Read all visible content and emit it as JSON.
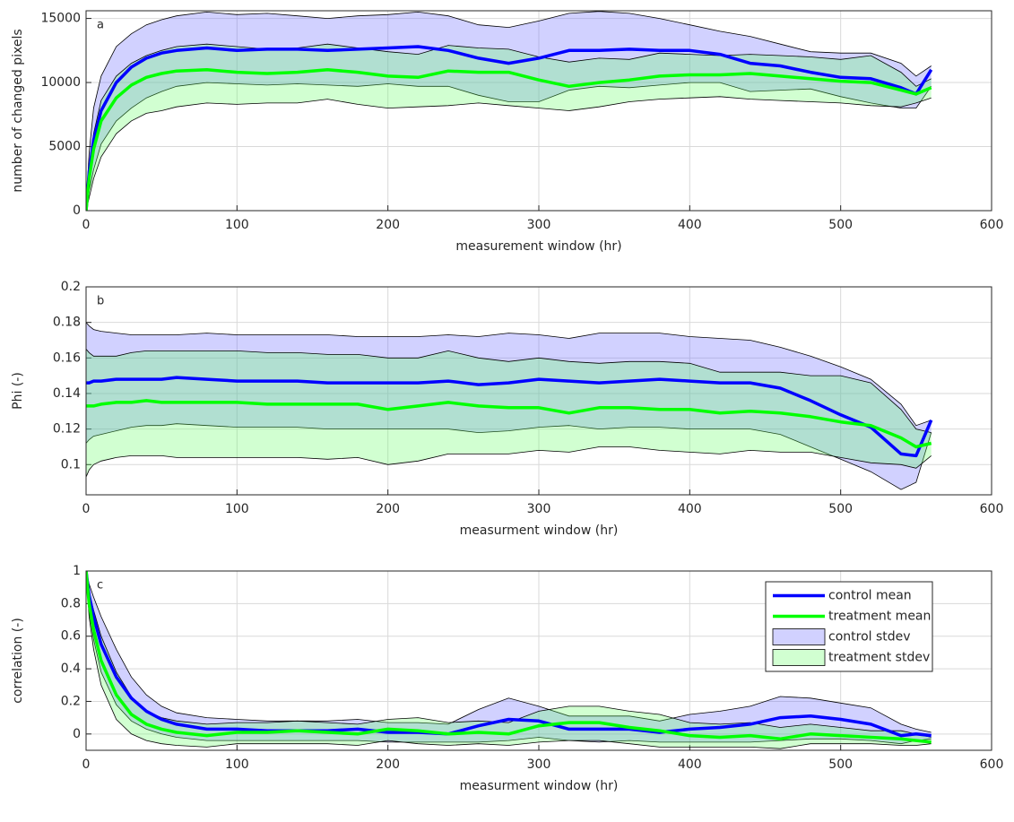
{
  "chart_data": [
    {
      "type": "line",
      "annotation": "a",
      "xlabel": "measurement window (hr)",
      "ylabel": "number of changed pixels",
      "x": [
        0,
        2,
        5,
        10,
        20,
        30,
        40,
        50,
        60,
        80,
        100,
        120,
        140,
        160,
        180,
        200,
        220,
        240,
        260,
        280,
        300,
        320,
        340,
        360,
        380,
        400,
        420,
        440,
        460,
        480,
        500,
        520,
        540,
        550,
        560
      ],
      "xlim": [
        0,
        600
      ],
      "xticks": [
        0,
        100,
        200,
        300,
        400,
        500,
        600
      ],
      "ylim": [
        0,
        15600
      ],
      "yticks": [
        0,
        5000,
        10000,
        15000
      ],
      "grid": true,
      "series": [
        {
          "color": "#0000ff",
          "values": [
            0,
            3000,
            5500,
            7800,
            10000,
            11200,
            11900,
            12300,
            12500,
            12700,
            12500,
            12600,
            12600,
            12500,
            12600,
            12700,
            12800,
            12500,
            11900,
            11500,
            11900,
            12500,
            12500,
            12600,
            12500,
            12500,
            12200,
            11500,
            11300,
            10800,
            10400,
            10300,
            9600,
            9100,
            11000
          ]
        },
        {
          "color": "#00ff00",
          "values": [
            0,
            2500,
            4800,
            7000,
            8800,
            9800,
            10400,
            10700,
            10900,
            11000,
            10800,
            10700,
            10800,
            11000,
            10800,
            10500,
            10400,
            10900,
            10800,
            10800,
            10200,
            9700,
            10000,
            10200,
            10500,
            10600,
            10600,
            10700,
            10500,
            10300,
            10100,
            10000,
            9400,
            9100,
            9600
          ]
        }
      ],
      "bands": [
        {
          "color": "#6666ff",
          "upper": [
            300,
            4500,
            8000,
            10500,
            12800,
            13800,
            14500,
            14900,
            15200,
            15500,
            15300,
            15400,
            15200,
            15000,
            15200,
            15300,
            15500,
            15200,
            14500,
            14300,
            14800,
            15400,
            15550,
            15400,
            15000,
            14500,
            14000,
            13600,
            13000,
            12400,
            12300,
            12300,
            11500,
            10500,
            11300
          ],
          "lower": [
            0,
            1500,
            3200,
            5200,
            7000,
            8000,
            8800,
            9300,
            9700,
            10000,
            9900,
            9800,
            9900,
            9800,
            9700,
            9900,
            9700,
            9700,
            9000,
            8500,
            8500,
            9400,
            9700,
            9600,
            9800,
            10000,
            10000,
            9300,
            9400,
            9500,
            8900,
            8400,
            8000,
            8000,
            9700
          ]
        },
        {
          "color": "#66ff66",
          "upper": [
            200,
            3300,
            6000,
            8600,
            10500,
            11500,
            12100,
            12500,
            12800,
            13000,
            12800,
            12600,
            12700,
            13000,
            12700,
            12400,
            12200,
            12900,
            12700,
            12600,
            12000,
            11600,
            11900,
            11800,
            12300,
            12200,
            12100,
            12200,
            12100,
            12000,
            11800,
            12100,
            10800,
            9700,
            10300
          ],
          "lower": [
            0,
            1000,
            2500,
            4200,
            6000,
            7000,
            7600,
            7800,
            8100,
            8400,
            8300,
            8400,
            8400,
            8700,
            8300,
            8000,
            8100,
            8200,
            8400,
            8200,
            8000,
            7800,
            8100,
            8500,
            8700,
            8800,
            8900,
            8700,
            8600,
            8500,
            8400,
            8200,
            8100,
            8400,
            8800
          ]
        }
      ]
    },
    {
      "type": "line",
      "annotation": "b",
      "xlabel": "measurment window (hr)",
      "ylabel": "Phi (-)",
      "x": [
        0,
        2,
        5,
        10,
        20,
        30,
        40,
        50,
        60,
        80,
        100,
        120,
        140,
        160,
        180,
        200,
        220,
        240,
        260,
        280,
        300,
        320,
        340,
        360,
        380,
        400,
        420,
        440,
        460,
        480,
        500,
        520,
        540,
        550,
        560
      ],
      "xlim": [
        0,
        600
      ],
      "xticks": [
        0,
        100,
        200,
        300,
        400,
        500,
        600
      ],
      "ylim": [
        0.083,
        0.2
      ],
      "yticks": [
        0.1,
        0.12,
        0.14,
        0.16,
        0.18,
        0.2
      ],
      "grid": true,
      "series": [
        {
          "color": "#0000ff",
          "values": [
            0.146,
            0.146,
            0.147,
            0.147,
            0.148,
            0.148,
            0.148,
            0.148,
            0.149,
            0.148,
            0.147,
            0.147,
            0.147,
            0.146,
            0.146,
            0.146,
            0.146,
            0.147,
            0.145,
            0.146,
            0.148,
            0.147,
            0.146,
            0.147,
            0.148,
            0.147,
            0.146,
            0.146,
            0.143,
            0.136,
            0.128,
            0.121,
            0.106,
            0.105,
            0.125
          ]
        },
        {
          "color": "#00ff00",
          "values": [
            0.133,
            0.133,
            0.133,
            0.134,
            0.135,
            0.135,
            0.136,
            0.135,
            0.135,
            0.135,
            0.135,
            0.134,
            0.134,
            0.134,
            0.134,
            0.131,
            0.133,
            0.135,
            0.133,
            0.132,
            0.132,
            0.129,
            0.132,
            0.132,
            0.131,
            0.131,
            0.129,
            0.13,
            0.129,
            0.127,
            0.124,
            0.122,
            0.115,
            0.11,
            0.112
          ]
        }
      ],
      "bands": [
        {
          "color": "#6666ff",
          "upper": [
            0.18,
            0.178,
            0.176,
            0.175,
            0.174,
            0.173,
            0.173,
            0.173,
            0.173,
            0.174,
            0.173,
            0.173,
            0.173,
            0.173,
            0.172,
            0.172,
            0.172,
            0.173,
            0.172,
            0.174,
            0.173,
            0.171,
            0.174,
            0.174,
            0.174,
            0.172,
            0.171,
            0.17,
            0.166,
            0.161,
            0.155,
            0.148,
            0.134,
            0.122,
            0.125
          ],
          "lower": [
            0.112,
            0.114,
            0.116,
            0.117,
            0.119,
            0.121,
            0.122,
            0.122,
            0.123,
            0.122,
            0.121,
            0.121,
            0.121,
            0.12,
            0.12,
            0.12,
            0.12,
            0.12,
            0.118,
            0.119,
            0.121,
            0.122,
            0.12,
            0.121,
            0.121,
            0.12,
            0.12,
            0.12,
            0.117,
            0.11,
            0.103,
            0.096,
            0.086,
            0.09,
            0.118
          ]
        },
        {
          "color": "#66ff66",
          "upper": [
            0.165,
            0.163,
            0.161,
            0.161,
            0.161,
            0.163,
            0.164,
            0.164,
            0.164,
            0.164,
            0.164,
            0.163,
            0.163,
            0.162,
            0.162,
            0.16,
            0.16,
            0.164,
            0.16,
            0.158,
            0.16,
            0.158,
            0.157,
            0.158,
            0.158,
            0.157,
            0.152,
            0.152,
            0.152,
            0.15,
            0.15,
            0.146,
            0.131,
            0.12,
            0.118
          ],
          "lower": [
            0.093,
            0.097,
            0.1,
            0.102,
            0.104,
            0.105,
            0.105,
            0.105,
            0.104,
            0.104,
            0.104,
            0.104,
            0.104,
            0.103,
            0.104,
            0.1,
            0.102,
            0.106,
            0.106,
            0.106,
            0.108,
            0.107,
            0.11,
            0.11,
            0.108,
            0.107,
            0.106,
            0.108,
            0.107,
            0.107,
            0.104,
            0.101,
            0.1,
            0.098,
            0.105
          ]
        }
      ]
    },
    {
      "type": "line",
      "annotation": "c",
      "xlabel": "measurment window (hr)",
      "ylabel": "correlation (-)",
      "x": [
        0,
        2,
        5,
        10,
        20,
        30,
        40,
        50,
        60,
        80,
        100,
        120,
        140,
        160,
        180,
        200,
        220,
        240,
        260,
        280,
        300,
        320,
        340,
        360,
        380,
        400,
        420,
        440,
        460,
        480,
        500,
        520,
        540,
        550,
        560
      ],
      "xlim": [
        0,
        600
      ],
      "xticks": [
        0,
        100,
        200,
        300,
        400,
        500,
        600
      ],
      "ylim": [
        -0.1,
        1
      ],
      "yticks": [
        0,
        0.2,
        0.4,
        0.6,
        0.8,
        1
      ],
      "grid": true,
      "legend": "northeast",
      "series": [
        {
          "name": "control mean",
          "color": "#0000ff",
          "values": [
            1.0,
            0.85,
            0.72,
            0.55,
            0.35,
            0.22,
            0.14,
            0.09,
            0.06,
            0.03,
            0.03,
            0.02,
            0.02,
            0.02,
            0.03,
            0.01,
            0.01,
            0.0,
            0.05,
            0.09,
            0.08,
            0.03,
            0.03,
            0.03,
            0.01,
            0.03,
            0.04,
            0.06,
            0.1,
            0.11,
            0.09,
            0.06,
            -0.01,
            0.0,
            -0.01
          ]
        },
        {
          "name": "treatment mean",
          "color": "#00ff00",
          "values": [
            1.0,
            0.8,
            0.64,
            0.45,
            0.24,
            0.12,
            0.06,
            0.03,
            0.01,
            -0.01,
            0.01,
            0.01,
            0.02,
            0.01,
            0.0,
            0.03,
            0.02,
            0.0,
            0.01,
            0.0,
            0.05,
            0.07,
            0.07,
            0.04,
            0.02,
            -0.01,
            -0.02,
            -0.01,
            -0.03,
            0.0,
            -0.01,
            -0.02,
            -0.03,
            -0.04,
            -0.05
          ]
        }
      ],
      "bands": [
        {
          "name": "control stdev",
          "color": "#6666ff",
          "upper": [
            1.0,
            0.92,
            0.84,
            0.72,
            0.52,
            0.35,
            0.24,
            0.17,
            0.13,
            0.1,
            0.09,
            0.08,
            0.08,
            0.08,
            0.09,
            0.07,
            0.07,
            0.06,
            0.15,
            0.22,
            0.17,
            0.11,
            0.11,
            0.11,
            0.08,
            0.12,
            0.14,
            0.17,
            0.23,
            0.22,
            0.19,
            0.16,
            0.06,
            0.03,
            0.01
          ],
          "lower": [
            1.0,
            0.75,
            0.58,
            0.38,
            0.18,
            0.08,
            0.03,
            0.0,
            -0.02,
            -0.04,
            -0.04,
            -0.04,
            -0.04,
            -0.04,
            -0.04,
            -0.05,
            -0.05,
            -0.05,
            -0.05,
            -0.04,
            -0.02,
            -0.04,
            -0.05,
            -0.04,
            -0.05,
            -0.05,
            -0.05,
            -0.05,
            -0.04,
            -0.03,
            -0.03,
            -0.04,
            -0.06,
            -0.04,
            -0.03
          ]
        },
        {
          "name": "treatment stdev",
          "color": "#66ff66",
          "upper": [
            1.0,
            0.87,
            0.76,
            0.6,
            0.38,
            0.23,
            0.14,
            0.1,
            0.08,
            0.06,
            0.07,
            0.07,
            0.08,
            0.07,
            0.06,
            0.09,
            0.1,
            0.07,
            0.08,
            0.07,
            0.14,
            0.17,
            0.17,
            0.14,
            0.12,
            0.07,
            0.06,
            0.07,
            0.04,
            0.06,
            0.04,
            0.02,
            0.02,
            0.0,
            -0.02
          ],
          "lower": [
            1.0,
            0.72,
            0.52,
            0.3,
            0.09,
            0.0,
            -0.04,
            -0.06,
            -0.07,
            -0.08,
            -0.06,
            -0.06,
            -0.06,
            -0.06,
            -0.07,
            -0.04,
            -0.06,
            -0.07,
            -0.06,
            -0.07,
            -0.05,
            -0.04,
            -0.04,
            -0.06,
            -0.08,
            -0.08,
            -0.08,
            -0.08,
            -0.09,
            -0.06,
            -0.06,
            -0.06,
            -0.07,
            -0.07,
            -0.06
          ]
        }
      ]
    }
  ]
}
